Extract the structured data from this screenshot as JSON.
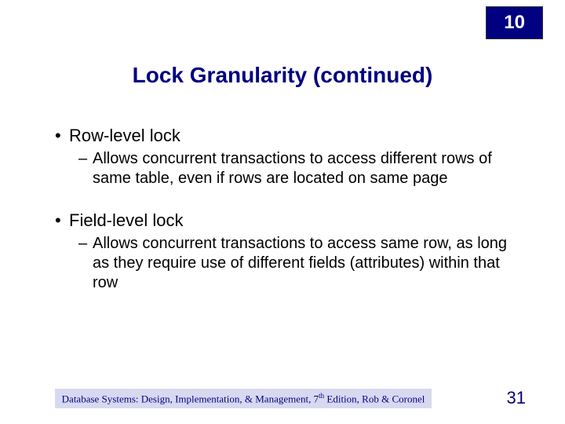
{
  "chapter_number": "10",
  "slide_title": "Lock Granularity (continued)",
  "bullets": [
    {
      "label": "Row-level lock",
      "sub": "Allows concurrent transactions to access different rows of same table, even if rows are located on same page"
    },
    {
      "label": "Field-level lock",
      "sub": "Allows concurrent transactions to access same row, as long as they require use of different fields (attributes) within that row"
    }
  ],
  "footer": {
    "prefix": "Database Systems: Design, Implementation, & Management, 7",
    "ordinal": "th",
    "suffix": " Edition, Rob & Coronel"
  },
  "page_number": "31",
  "colors": {
    "accent": "#000080",
    "footer_bg": "#d8d8f0",
    "background": "#ffffff"
  }
}
